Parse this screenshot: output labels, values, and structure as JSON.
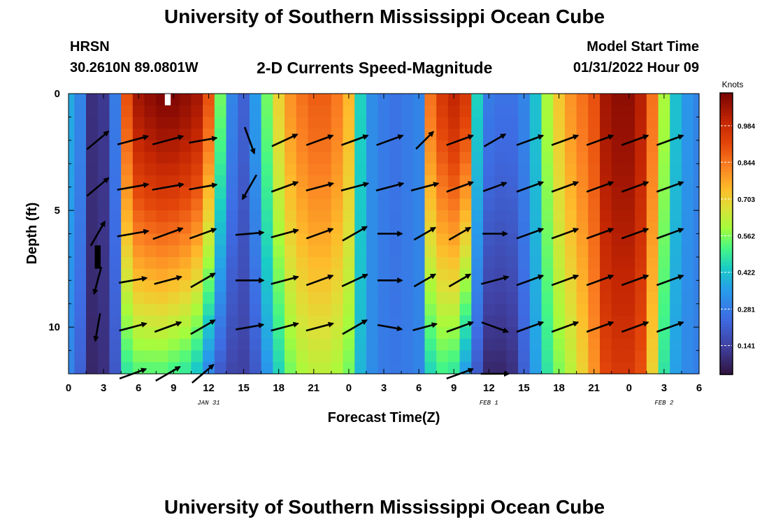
{
  "page": {
    "title_top": "University of Southern Mississippi Ocean Cube",
    "title_bottom": "University of Southern Mississippi Ocean Cube",
    "station": "HRSN",
    "coords": "30.2610N  89.0801W",
    "chart_title": "2-D Currents Speed-Magnitude",
    "model_start_label": "Model Start Time",
    "model_start_value": "01/31/2022 Hour 09"
  },
  "chart_data": {
    "type": "heatmap",
    "title": "2-D Currents Speed-Magnitude",
    "xlabel": "Forecast Time(Z)",
    "ylabel": "Depth (ft)",
    "x_hours_range": [
      0,
      54
    ],
    "x_ticks": [
      {
        "h": 0,
        "label": "0"
      },
      {
        "h": 3,
        "label": "3"
      },
      {
        "h": 6,
        "label": "6"
      },
      {
        "h": 9,
        "label": "9"
      },
      {
        "h": 12,
        "label": "12"
      },
      {
        "h": 15,
        "label": "15"
      },
      {
        "h": 18,
        "label": "18"
      },
      {
        "h": 21,
        "label": "21"
      },
      {
        "h": 24,
        "label": "0"
      },
      {
        "h": 27,
        "label": "3"
      },
      {
        "h": 30,
        "label": "6"
      },
      {
        "h": 33,
        "label": "9"
      },
      {
        "h": 36,
        "label": "12"
      },
      {
        "h": 39,
        "label": "15"
      },
      {
        "h": 42,
        "label": "18"
      },
      {
        "h": 45,
        "label": "21"
      },
      {
        "h": 48,
        "label": "0"
      },
      {
        "h": 51,
        "label": "3"
      },
      {
        "h": 54,
        "label": "6"
      }
    ],
    "date_labels": [
      {
        "h": 12,
        "label": "JAN 31"
      },
      {
        "h": 36,
        "label": "FEB 1"
      },
      {
        "h": 51,
        "label": "FEB 2"
      }
    ],
    "y_range": [
      0,
      12
    ],
    "y_ticks": [
      {
        "v": 0,
        "label": "0"
      },
      {
        "v": 5,
        "label": "5"
      },
      {
        "v": 10,
        "label": "10"
      }
    ],
    "colorbar": {
      "title": "Knots",
      "min": 0.03,
      "max": 1.11,
      "ticks": [
        {
          "v": 0.141,
          "label": "0.141"
        },
        {
          "v": 0.281,
          "label": "0.281"
        },
        {
          "v": 0.422,
          "label": "0.422"
        },
        {
          "v": 0.562,
          "label": "0.562"
        },
        {
          "v": 0.703,
          "label": "0.703"
        },
        {
          "v": 0.844,
          "label": "0.844"
        },
        {
          "v": 0.984,
          "label": "0.984"
        }
      ]
    },
    "speed_profile": {
      "hours": [
        0,
        1,
        2,
        3,
        4,
        5,
        6,
        7,
        8,
        9,
        10,
        11,
        12,
        13,
        14,
        15,
        16,
        17,
        18,
        19,
        20,
        21,
        22,
        23,
        24,
        25,
        26,
        27,
        28,
        29,
        30,
        31,
        32,
        33,
        34,
        35,
        36,
        37,
        38,
        39,
        40,
        41,
        42,
        43,
        44,
        45,
        46,
        47,
        48,
        49,
        50,
        51,
        52,
        53,
        54
      ],
      "surface": [
        0.38,
        0.3,
        0.1,
        0.12,
        0.28,
        0.9,
        1.05,
        1.08,
        1.1,
        1.1,
        1.08,
        1.05,
        0.9,
        0.55,
        0.3,
        0.22,
        0.35,
        0.55,
        0.7,
        0.8,
        0.85,
        0.88,
        0.88,
        0.84,
        0.75,
        0.45,
        0.32,
        0.28,
        0.26,
        0.28,
        0.3,
        0.85,
        0.95,
        1.0,
        0.95,
        0.45,
        0.28,
        0.26,
        0.26,
        0.3,
        0.42,
        0.6,
        0.72,
        0.8,
        0.85,
        0.9,
        1.05,
        1.08,
        1.08,
        1.02,
        0.85,
        0.6,
        0.42,
        0.34,
        0.3
      ],
      "bottom": [
        0.3,
        0.22,
        0.08,
        0.1,
        0.2,
        0.48,
        0.52,
        0.52,
        0.52,
        0.5,
        0.48,
        0.42,
        0.3,
        0.2,
        0.15,
        0.14,
        0.2,
        0.34,
        0.45,
        0.55,
        0.6,
        0.62,
        0.62,
        0.6,
        0.55,
        0.4,
        0.32,
        0.28,
        0.27,
        0.28,
        0.3,
        0.45,
        0.5,
        0.48,
        0.35,
        0.2,
        0.08,
        0.08,
        0.1,
        0.22,
        0.36,
        0.48,
        0.56,
        0.62,
        0.7,
        0.8,
        0.92,
        0.95,
        0.95,
        0.9,
        0.7,
        0.48,
        0.36,
        0.31,
        0.29
      ],
      "blank_cells": [
        {
          "h": 8.5,
          "depth_from": 0,
          "depth_to": 0.5
        },
        {
          "h": 2.5,
          "depth_from": 6.5,
          "depth_to": 7.5
        }
      ]
    },
    "vectors": [
      {
        "h": 2.5,
        "d": 2,
        "dir": 50,
        "len": 0.8
      },
      {
        "h": 5.5,
        "d": 2,
        "dir": 75,
        "len": 0.9
      },
      {
        "h": 8.5,
        "d": 2,
        "dir": 75,
        "len": 0.9
      },
      {
        "h": 11.5,
        "d": 2,
        "dir": 80,
        "len": 0.8
      },
      {
        "h": 15.5,
        "d": 2,
        "dir": 160,
        "len": 0.8
      },
      {
        "h": 18.5,
        "d": 2,
        "dir": 65,
        "len": 0.8
      },
      {
        "h": 21.5,
        "d": 2,
        "dir": 70,
        "len": 0.8
      },
      {
        "h": 24.5,
        "d": 2,
        "dir": 70,
        "len": 0.8
      },
      {
        "h": 27.5,
        "d": 2,
        "dir": 70,
        "len": 0.8
      },
      {
        "h": 30.5,
        "d": 2,
        "dir": 45,
        "len": 0.7
      },
      {
        "h": 33.5,
        "d": 2,
        "dir": 70,
        "len": 0.8
      },
      {
        "h": 36.5,
        "d": 2,
        "dir": 60,
        "len": 0.7
      },
      {
        "h": 39.5,
        "d": 2,
        "dir": 70,
        "len": 0.8
      },
      {
        "h": 42.5,
        "d": 2,
        "dir": 70,
        "len": 0.8
      },
      {
        "h": 45.5,
        "d": 2,
        "dir": 70,
        "len": 0.8
      },
      {
        "h": 48.5,
        "d": 2,
        "dir": 70,
        "len": 0.8
      },
      {
        "h": 51.5,
        "d": 2,
        "dir": 70,
        "len": 0.8
      },
      {
        "h": 2.5,
        "d": 4,
        "dir": 50,
        "len": 0.8
      },
      {
        "h": 5.5,
        "d": 4,
        "dir": 80,
        "len": 0.9
      },
      {
        "h": 8.5,
        "d": 4,
        "dir": 80,
        "len": 0.9
      },
      {
        "h": 11.5,
        "d": 4,
        "dir": 80,
        "len": 0.8
      },
      {
        "h": 15.5,
        "d": 4,
        "dir": 210,
        "len": 0.8
      },
      {
        "h": 18.5,
        "d": 4,
        "dir": 70,
        "len": 0.8
      },
      {
        "h": 21.5,
        "d": 4,
        "dir": 75,
        "len": 0.8
      },
      {
        "h": 24.5,
        "d": 4,
        "dir": 75,
        "len": 0.8
      },
      {
        "h": 27.5,
        "d": 4,
        "dir": 75,
        "len": 0.8
      },
      {
        "h": 30.5,
        "d": 4,
        "dir": 75,
        "len": 0.8
      },
      {
        "h": 33.5,
        "d": 4,
        "dir": 70,
        "len": 0.8
      },
      {
        "h": 36.5,
        "d": 4,
        "dir": 70,
        "len": 0.7
      },
      {
        "h": 39.5,
        "d": 4,
        "dir": 70,
        "len": 0.8
      },
      {
        "h": 42.5,
        "d": 4,
        "dir": 70,
        "len": 0.8
      },
      {
        "h": 45.5,
        "d": 4,
        "dir": 70,
        "len": 0.8
      },
      {
        "h": 48.5,
        "d": 4,
        "dir": 70,
        "len": 0.8
      },
      {
        "h": 51.5,
        "d": 4,
        "dir": 70,
        "len": 0.8
      },
      {
        "h": 2.5,
        "d": 6,
        "dir": 30,
        "len": 0.8
      },
      {
        "h": 5.5,
        "d": 6,
        "dir": 80,
        "len": 0.9
      },
      {
        "h": 8.5,
        "d": 6,
        "dir": 70,
        "len": 0.9
      },
      {
        "h": 11.5,
        "d": 6,
        "dir": 70,
        "len": 0.8
      },
      {
        "h": 15.5,
        "d": 6,
        "dir": 85,
        "len": 0.8
      },
      {
        "h": 18.5,
        "d": 6,
        "dir": 75,
        "len": 0.8
      },
      {
        "h": 21.5,
        "d": 6,
        "dir": 70,
        "len": 0.8
      },
      {
        "h": 24.5,
        "d": 6,
        "dir": 60,
        "len": 0.8
      },
      {
        "h": 27.5,
        "d": 6,
        "dir": 90,
        "len": 0.7
      },
      {
        "h": 30.5,
        "d": 6,
        "dir": 60,
        "len": 0.7
      },
      {
        "h": 33.5,
        "d": 6,
        "dir": 60,
        "len": 0.7
      },
      {
        "h": 36.5,
        "d": 6,
        "dir": 90,
        "len": 0.7
      },
      {
        "h": 39.5,
        "d": 6,
        "dir": 70,
        "len": 0.8
      },
      {
        "h": 42.5,
        "d": 6,
        "dir": 70,
        "len": 0.8
      },
      {
        "h": 45.5,
        "d": 6,
        "dir": 70,
        "len": 0.8
      },
      {
        "h": 48.5,
        "d": 6,
        "dir": 70,
        "len": 0.8
      },
      {
        "h": 51.5,
        "d": 6,
        "dir": 70,
        "len": 0.8
      },
      {
        "h": 2.5,
        "d": 8,
        "dir": 195,
        "len": 0.8
      },
      {
        "h": 5.5,
        "d": 8,
        "dir": 80,
        "len": 0.8
      },
      {
        "h": 8.5,
        "d": 8,
        "dir": 75,
        "len": 0.8
      },
      {
        "h": 11.5,
        "d": 8,
        "dir": 60,
        "len": 0.8
      },
      {
        "h": 15.5,
        "d": 8,
        "dir": 90,
        "len": 0.8
      },
      {
        "h": 18.5,
        "d": 8,
        "dir": 75,
        "len": 0.8
      },
      {
        "h": 21.5,
        "d": 8,
        "dir": 70,
        "len": 0.8
      },
      {
        "h": 24.5,
        "d": 8,
        "dir": 65,
        "len": 0.8
      },
      {
        "h": 27.5,
        "d": 8,
        "dir": 90,
        "len": 0.7
      },
      {
        "h": 30.5,
        "d": 8,
        "dir": 60,
        "len": 0.7
      },
      {
        "h": 33.5,
        "d": 8,
        "dir": 60,
        "len": 0.7
      },
      {
        "h": 36.5,
        "d": 8,
        "dir": 75,
        "len": 0.8
      },
      {
        "h": 39.5,
        "d": 8,
        "dir": 70,
        "len": 0.8
      },
      {
        "h": 42.5,
        "d": 8,
        "dir": 70,
        "len": 0.8
      },
      {
        "h": 45.5,
        "d": 8,
        "dir": 70,
        "len": 0.8
      },
      {
        "h": 48.5,
        "d": 8,
        "dir": 70,
        "len": 0.8
      },
      {
        "h": 51.5,
        "d": 8,
        "dir": 70,
        "len": 0.8
      },
      {
        "h": 2.5,
        "d": 10,
        "dir": 190,
        "len": 0.8
      },
      {
        "h": 5.5,
        "d": 10,
        "dir": 75,
        "len": 0.8
      },
      {
        "h": 8.5,
        "d": 10,
        "dir": 70,
        "len": 0.8
      },
      {
        "h": 11.5,
        "d": 10,
        "dir": 60,
        "len": 0.8
      },
      {
        "h": 15.5,
        "d": 10,
        "dir": 80,
        "len": 0.8
      },
      {
        "h": 18.5,
        "d": 10,
        "dir": 75,
        "len": 0.8
      },
      {
        "h": 21.5,
        "d": 10,
        "dir": 75,
        "len": 0.8
      },
      {
        "h": 24.5,
        "d": 10,
        "dir": 60,
        "len": 0.8
      },
      {
        "h": 27.5,
        "d": 10,
        "dir": 100,
        "len": 0.7
      },
      {
        "h": 30.5,
        "d": 10,
        "dir": 75,
        "len": 0.7
      },
      {
        "h": 33.5,
        "d": 10,
        "dir": 70,
        "len": 0.8
      },
      {
        "h": 36.5,
        "d": 10,
        "dir": 110,
        "len": 0.8
      },
      {
        "h": 39.5,
        "d": 10,
        "dir": 70,
        "len": 0.8
      },
      {
        "h": 42.5,
        "d": 10,
        "dir": 70,
        "len": 0.8
      },
      {
        "h": 45.5,
        "d": 10,
        "dir": 70,
        "len": 0.8
      },
      {
        "h": 48.5,
        "d": 10,
        "dir": 70,
        "len": 0.8
      },
      {
        "h": 51.5,
        "d": 10,
        "dir": 70,
        "len": 0.8
      },
      {
        "h": 5.5,
        "d": 12,
        "dir": 70,
        "len": 0.8
      },
      {
        "h": 8.5,
        "d": 12,
        "dir": 60,
        "len": 0.8
      },
      {
        "h": 11.5,
        "d": 12,
        "dir": 50,
        "len": 0.8
      },
      {
        "h": 33.5,
        "d": 12,
        "dir": 70,
        "len": 0.8
      },
      {
        "h": 36.5,
        "d": 12,
        "dir": 90,
        "len": 0.8
      }
    ]
  }
}
